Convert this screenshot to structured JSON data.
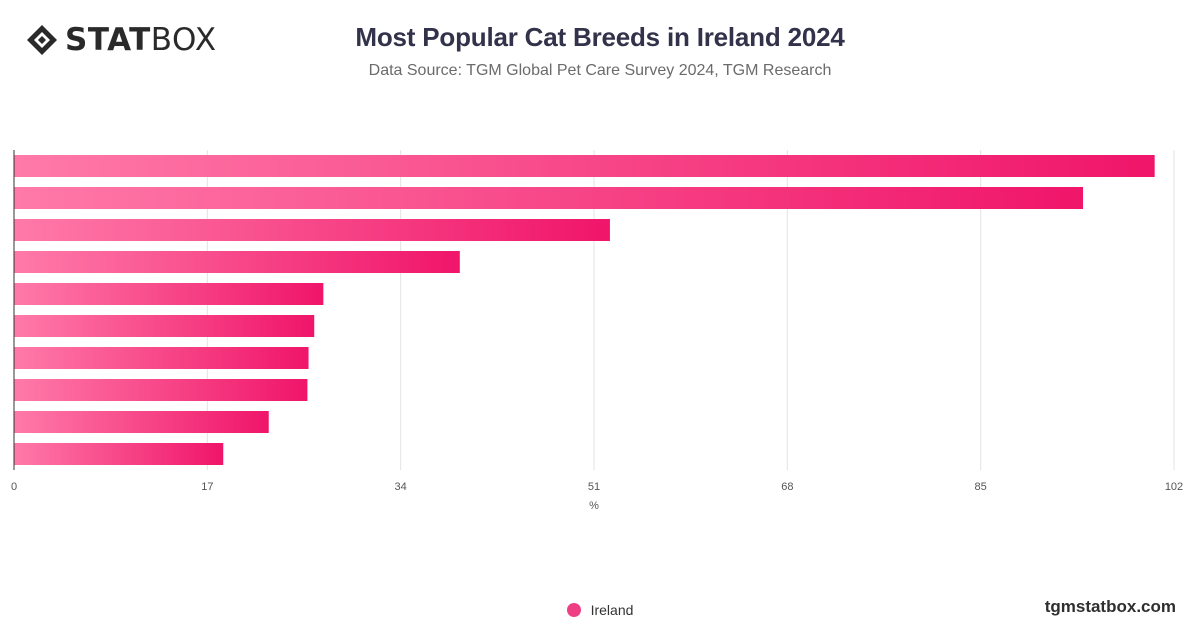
{
  "header": {
    "logo_bold": "STAT",
    "logo_light": "BOX",
    "title": "Most Popular Cat Breeds in Ireland 2024",
    "subtitle": "Data Source: TGM Global Pet Care Survey 2024, TGM Research"
  },
  "colors": {
    "bar_gradient_start": "#ff7aa8",
    "bar_gradient_end": "#f0156a",
    "legend_marker": "#ef3f84"
  },
  "chart_data": {
    "type": "bar",
    "orientation": "horizontal",
    "categories": [
      "",
      "",
      "",
      "",
      "",
      "",
      "",
      "",
      "",
      ""
    ],
    "series": [
      {
        "name": "Ireland",
        "values": [
          100.3,
          94.0,
          52.4,
          39.2,
          27.2,
          26.4,
          25.9,
          25.8,
          22.4,
          18.4
        ]
      }
    ],
    "xlabel": "%",
    "xlim": [
      0,
      102
    ],
    "xticks": [
      0,
      17,
      34,
      51,
      68,
      85,
      102
    ],
    "grid": "vertical",
    "legend": "bottom-center"
  },
  "footer": {
    "legend_label": "Ireland",
    "watermark": "tgmstatbox.com"
  }
}
